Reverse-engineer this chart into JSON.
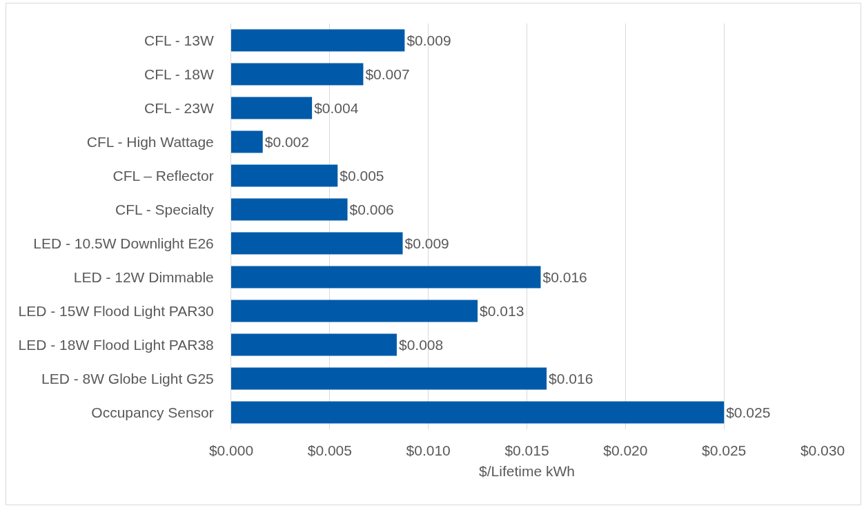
{
  "chart_data": {
    "type": "bar",
    "orientation": "horizontal",
    "xlabel": "$/Lifetime kWh",
    "categories": [
      "CFL - 13W",
      "CFL - 18W",
      "CFL - 23W",
      "CFL - High Wattage",
      "CFL – Reflector",
      "CFL - Specialty",
      "LED - 10.5W Downlight E26",
      "LED - 12W Dimmable",
      "LED - 15W Flood Light PAR30",
      "LED - 18W Flood Light PAR38",
      "LED - 8W Globe Light G25",
      "Occupancy Sensor"
    ],
    "values": [
      0.0088,
      0.0067,
      0.0041,
      0.0016,
      0.0054,
      0.0059,
      0.0087,
      0.0157,
      0.0125,
      0.0084,
      0.016,
      0.025
    ],
    "value_labels": [
      "$0.009",
      "$0.007",
      "$0.004",
      "$0.002",
      "$0.005",
      "$0.006",
      "$0.009",
      "$0.016",
      "$0.013",
      "$0.008",
      "$0.016",
      "$0.025"
    ],
    "color": "#005aa9",
    "xlim": [
      0,
      0.03
    ],
    "xticks": [
      {
        "value": 0,
        "label": "$0.000"
      },
      {
        "value": 0.005,
        "label": "$0.005"
      },
      {
        "value": 0.01,
        "label": "$0.010"
      },
      {
        "value": 0.015,
        "label": "$0.015"
      },
      {
        "value": 0.02,
        "label": "$0.020"
      },
      {
        "value": 0.025,
        "label": "$0.025"
      },
      {
        "value": 0.03,
        "label": "$0.030"
      }
    ],
    "grid": "x"
  }
}
